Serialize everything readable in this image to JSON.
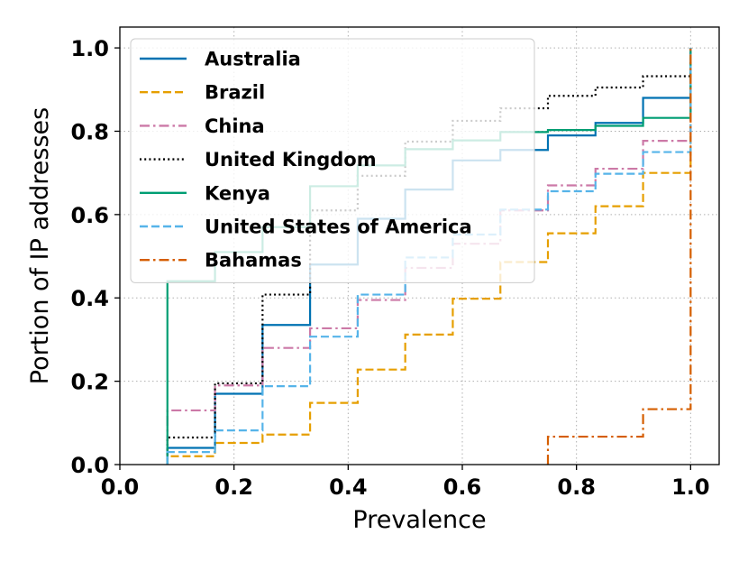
{
  "chart_data": {
    "type": "line",
    "title": "",
    "xlabel": "Prevalence",
    "ylabel": "Portion of IP addresses",
    "xlim": [
      0.0,
      1.05
    ],
    "ylim": [
      0.0,
      1.05
    ],
    "xticks": [
      0.0,
      0.2,
      0.4,
      0.6,
      0.8,
      1.0
    ],
    "yticks": [
      0.0,
      0.2,
      0.4,
      0.6,
      0.8,
      1.0
    ],
    "xtick_labels": [
      "0.0",
      "0.2",
      "0.4",
      "0.6",
      "0.8",
      "1.0"
    ],
    "ytick_labels": [
      "0.0",
      "0.2",
      "0.4",
      "0.6",
      "0.8",
      "1.0"
    ],
    "grid": true,
    "legend_position": "top-left",
    "step_x": [
      0.0833,
      0.1667,
      0.25,
      0.3333,
      0.4167,
      0.5,
      0.5833,
      0.6667,
      0.75,
      0.8333,
      0.9167,
      1.0
    ],
    "series": [
      {
        "name": "Australia",
        "color": "#0072B2",
        "style": "solid",
        "x_start": 0.0833,
        "values": [
          0.04,
          0.17,
          0.335,
          0.48,
          0.59,
          0.66,
          0.73,
          0.755,
          0.79,
          0.82,
          0.88,
          1.0
        ]
      },
      {
        "name": "Brazil",
        "color": "#E69F00",
        "style": "dashed",
        "x_start": 0.0833,
        "values": [
          0.02,
          0.052,
          0.072,
          0.148,
          0.228,
          0.312,
          0.398,
          0.486,
          0.555,
          0.62,
          0.7,
          1.0
        ]
      },
      {
        "name": "China",
        "color": "#CC79A7",
        "style": "dashdot",
        "x_start": 0.0833,
        "values": [
          0.13,
          0.19,
          0.28,
          0.327,
          0.395,
          0.472,
          0.53,
          0.61,
          0.67,
          0.71,
          0.777,
          1.0
        ]
      },
      {
        "name": "United Kingdom",
        "color": "#000000",
        "style": "dotted",
        "x_start": 0.0833,
        "values": [
          0.065,
          0.195,
          0.408,
          0.61,
          0.693,
          0.775,
          0.825,
          0.855,
          0.885,
          0.905,
          0.932,
          1.0
        ]
      },
      {
        "name": "Kenya",
        "color": "#009E73",
        "style": "solid",
        "x_start": 0.0833,
        "values": [
          0.44,
          0.51,
          0.57,
          0.668,
          0.718,
          0.757,
          0.778,
          0.798,
          0.803,
          0.813,
          0.832,
          1.0
        ]
      },
      {
        "name": "United States of America",
        "color": "#56B4E9",
        "style": "dashed",
        "x_start": 0.0833,
        "values": [
          0.03,
          0.082,
          0.188,
          0.307,
          0.408,
          0.497,
          0.552,
          0.612,
          0.656,
          0.698,
          0.75,
          1.0
        ]
      },
      {
        "name": "Bahamas",
        "color": "#D55E00",
        "style": "dashdot",
        "x_start": 0.75,
        "values": [
          0.067,
          0.067,
          0.133,
          1.0
        ]
      }
    ]
  }
}
